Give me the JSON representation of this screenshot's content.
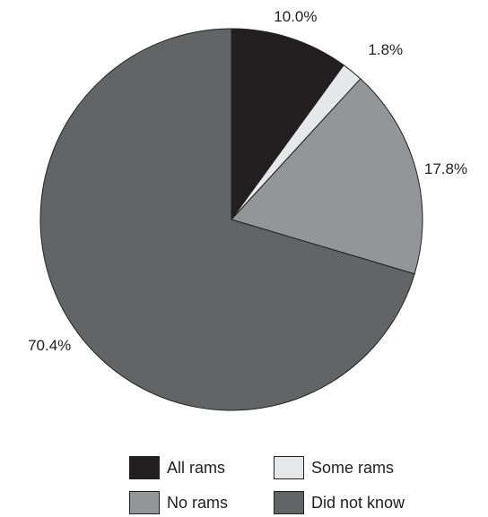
{
  "chart_data": {
    "type": "pie",
    "categories": [
      "All rams",
      "Some rams",
      "No rams",
      "Did not know"
    ],
    "values": [
      10.0,
      1.8,
      17.8,
      70.4
    ],
    "labels": [
      "10.0%",
      "1.8%",
      "17.8%",
      "70.4%"
    ],
    "colors": [
      "#231f20",
      "#e6e7e8",
      "#939598",
      "#636466"
    ],
    "start_angle": "12 o'clock",
    "direction": "clockwise",
    "legend_placement": "bottom",
    "title": ""
  }
}
